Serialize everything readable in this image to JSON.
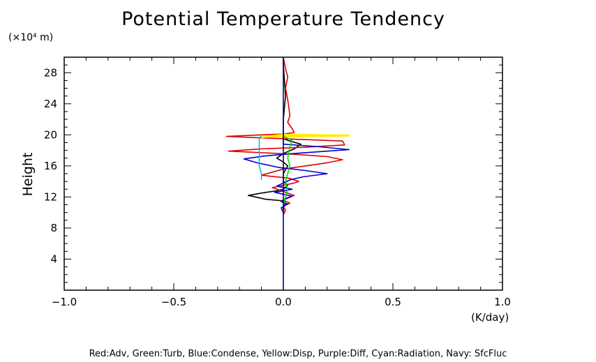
{
  "chart_data": {
    "type": "line",
    "title": "Potential Temperature Tendency",
    "y_unit_label": "(×10⁴ m)",
    "ylabel": "Height",
    "x_unit_label": "(K/day)",
    "caption": "Red:Adv, Green:Turb, Blue:Condense, Yellow:Disp, Purple:Diff, Cyan:Radiation, Navy: SfcFluc",
    "xlim": [
      -1.0,
      1.0
    ],
    "ylim": [
      0,
      30
    ],
    "x_ticks": [
      -1.0,
      -0.5,
      0.0,
      0.5,
      1.0
    ],
    "x_tick_labels": [
      "−1.0",
      "−0.5",
      "0.0",
      "0.5",
      "1.0"
    ],
    "y_ticks": [
      4,
      8,
      12,
      16,
      20,
      24,
      28
    ],
    "y_tick_labels": [
      "4",
      "8",
      "12",
      "16",
      "20",
      "24",
      "28"
    ],
    "grid": false,
    "series": [
      {
        "color": "#000000",
        "points": [
          [
            0.0,
            9.8
          ],
          [
            0.0,
            10.6
          ],
          [
            0.01,
            11.2
          ],
          [
            0.0,
            11.5
          ],
          [
            -0.08,
            11.7
          ],
          [
            -0.16,
            12.2
          ],
          [
            -0.1,
            12.5
          ],
          [
            -0.03,
            12.8
          ],
          [
            0.0,
            13.0
          ],
          [
            0.02,
            13.5
          ],
          [
            0.0,
            14.0
          ],
          [
            0.0,
            15.0
          ],
          [
            0.02,
            16.0
          ],
          [
            0.0,
            16.5
          ],
          [
            -0.03,
            17.0
          ],
          [
            0.0,
            17.6
          ],
          [
            0.05,
            18.2
          ],
          [
            0.08,
            18.8
          ],
          [
            0.03,
            19.2
          ],
          [
            0.0,
            19.5
          ],
          [
            0.0,
            20.0
          ],
          [
            0.0,
            21.0
          ],
          [
            0.0,
            22.0
          ],
          [
            0.01,
            25.0
          ],
          [
            0.0,
            29.0
          ],
          [
            0.0,
            30.0
          ]
        ]
      },
      {
        "color": "#dd0000",
        "points": [
          [
            0.0,
            9.7
          ],
          [
            0.01,
            10.3
          ],
          [
            0.0,
            10.8
          ],
          [
            0.03,
            11.2
          ],
          [
            0.0,
            11.6
          ],
          [
            0.05,
            12.2
          ],
          [
            0.0,
            12.7
          ],
          [
            -0.05,
            13.2
          ],
          [
            0.0,
            13.5
          ],
          [
            0.05,
            13.8
          ],
          [
            0.07,
            14.0
          ],
          [
            0.03,
            14.4
          ],
          [
            -0.1,
            14.8
          ],
          [
            -0.05,
            15.2
          ],
          [
            0.0,
            15.6
          ],
          [
            0.1,
            16.0
          ],
          [
            0.2,
            16.4
          ],
          [
            0.27,
            16.8
          ],
          [
            0.2,
            17.2
          ],
          [
            0.05,
            17.5
          ],
          [
            -0.17,
            17.8
          ],
          [
            -0.25,
            17.9
          ],
          [
            -0.1,
            18.2
          ],
          [
            0.1,
            18.4
          ],
          [
            0.28,
            18.7
          ],
          [
            0.27,
            19.2
          ],
          [
            0.0,
            19.5
          ],
          [
            -0.26,
            19.8
          ],
          [
            -0.1,
            20.0
          ],
          [
            0.0,
            20.1
          ],
          [
            0.05,
            20.3
          ],
          [
            0.04,
            20.8
          ],
          [
            0.02,
            21.6
          ],
          [
            0.03,
            22.5
          ],
          [
            0.02,
            24.5
          ],
          [
            0.01,
            26.0
          ],
          [
            0.02,
            27.5
          ],
          [
            0.01,
            28.5
          ],
          [
            0.0,
            30.0
          ]
        ]
      },
      {
        "color": "#ffee00",
        "points": [
          [
            -0.1,
            19.75
          ],
          [
            0.0,
            19.8
          ],
          [
            0.3,
            19.9
          ],
          [
            0.0,
            20.0
          ],
          [
            -0.1,
            19.7
          ]
        ]
      },
      {
        "color": "#0000cc",
        "points": [
          [
            0.0,
            10.0
          ],
          [
            -0.01,
            10.6
          ],
          [
            0.02,
            11.1
          ],
          [
            -0.01,
            11.4
          ],
          [
            0.01,
            11.8
          ],
          [
            0.04,
            12.1
          ],
          [
            -0.04,
            12.6
          ],
          [
            0.04,
            13.0
          ],
          [
            -0.03,
            13.4
          ],
          [
            0.0,
            13.8
          ],
          [
            0.03,
            14.2
          ],
          [
            0.09,
            14.6
          ],
          [
            0.2,
            15.0
          ],
          [
            0.1,
            15.4
          ],
          [
            -0.02,
            15.8
          ],
          [
            -0.12,
            16.4
          ],
          [
            -0.18,
            16.9
          ],
          [
            -0.08,
            17.3
          ],
          [
            0.05,
            17.6
          ],
          [
            0.2,
            17.9
          ],
          [
            0.3,
            18.1
          ],
          [
            0.15,
            18.5
          ],
          [
            0.0,
            18.8
          ],
          [
            0.0,
            20.0
          ]
        ]
      },
      {
        "color": "#00bbee",
        "points": [
          [
            -0.1,
            14.2
          ],
          [
            -0.1,
            15.0
          ],
          [
            -0.11,
            16.0
          ],
          [
            -0.11,
            18.0
          ],
          [
            -0.11,
            19.5
          ],
          [
            -0.1,
            20.0
          ]
        ]
      },
      {
        "color": "#00dd00",
        "points": [
          [
            0.0,
            11.0
          ],
          [
            0.01,
            12.0
          ],
          [
            0.02,
            13.0
          ],
          [
            0.01,
            14.0
          ],
          [
            0.03,
            16.0
          ],
          [
            0.02,
            17.0
          ],
          [
            0.03,
            18.5
          ],
          [
            0.04,
            19.3
          ],
          [
            0.0,
            19.8
          ]
        ]
      },
      {
        "color": "#000080",
        "points": [
          [
            0.0,
            0.0
          ],
          [
            0.0,
            30.0
          ]
        ]
      }
    ]
  }
}
